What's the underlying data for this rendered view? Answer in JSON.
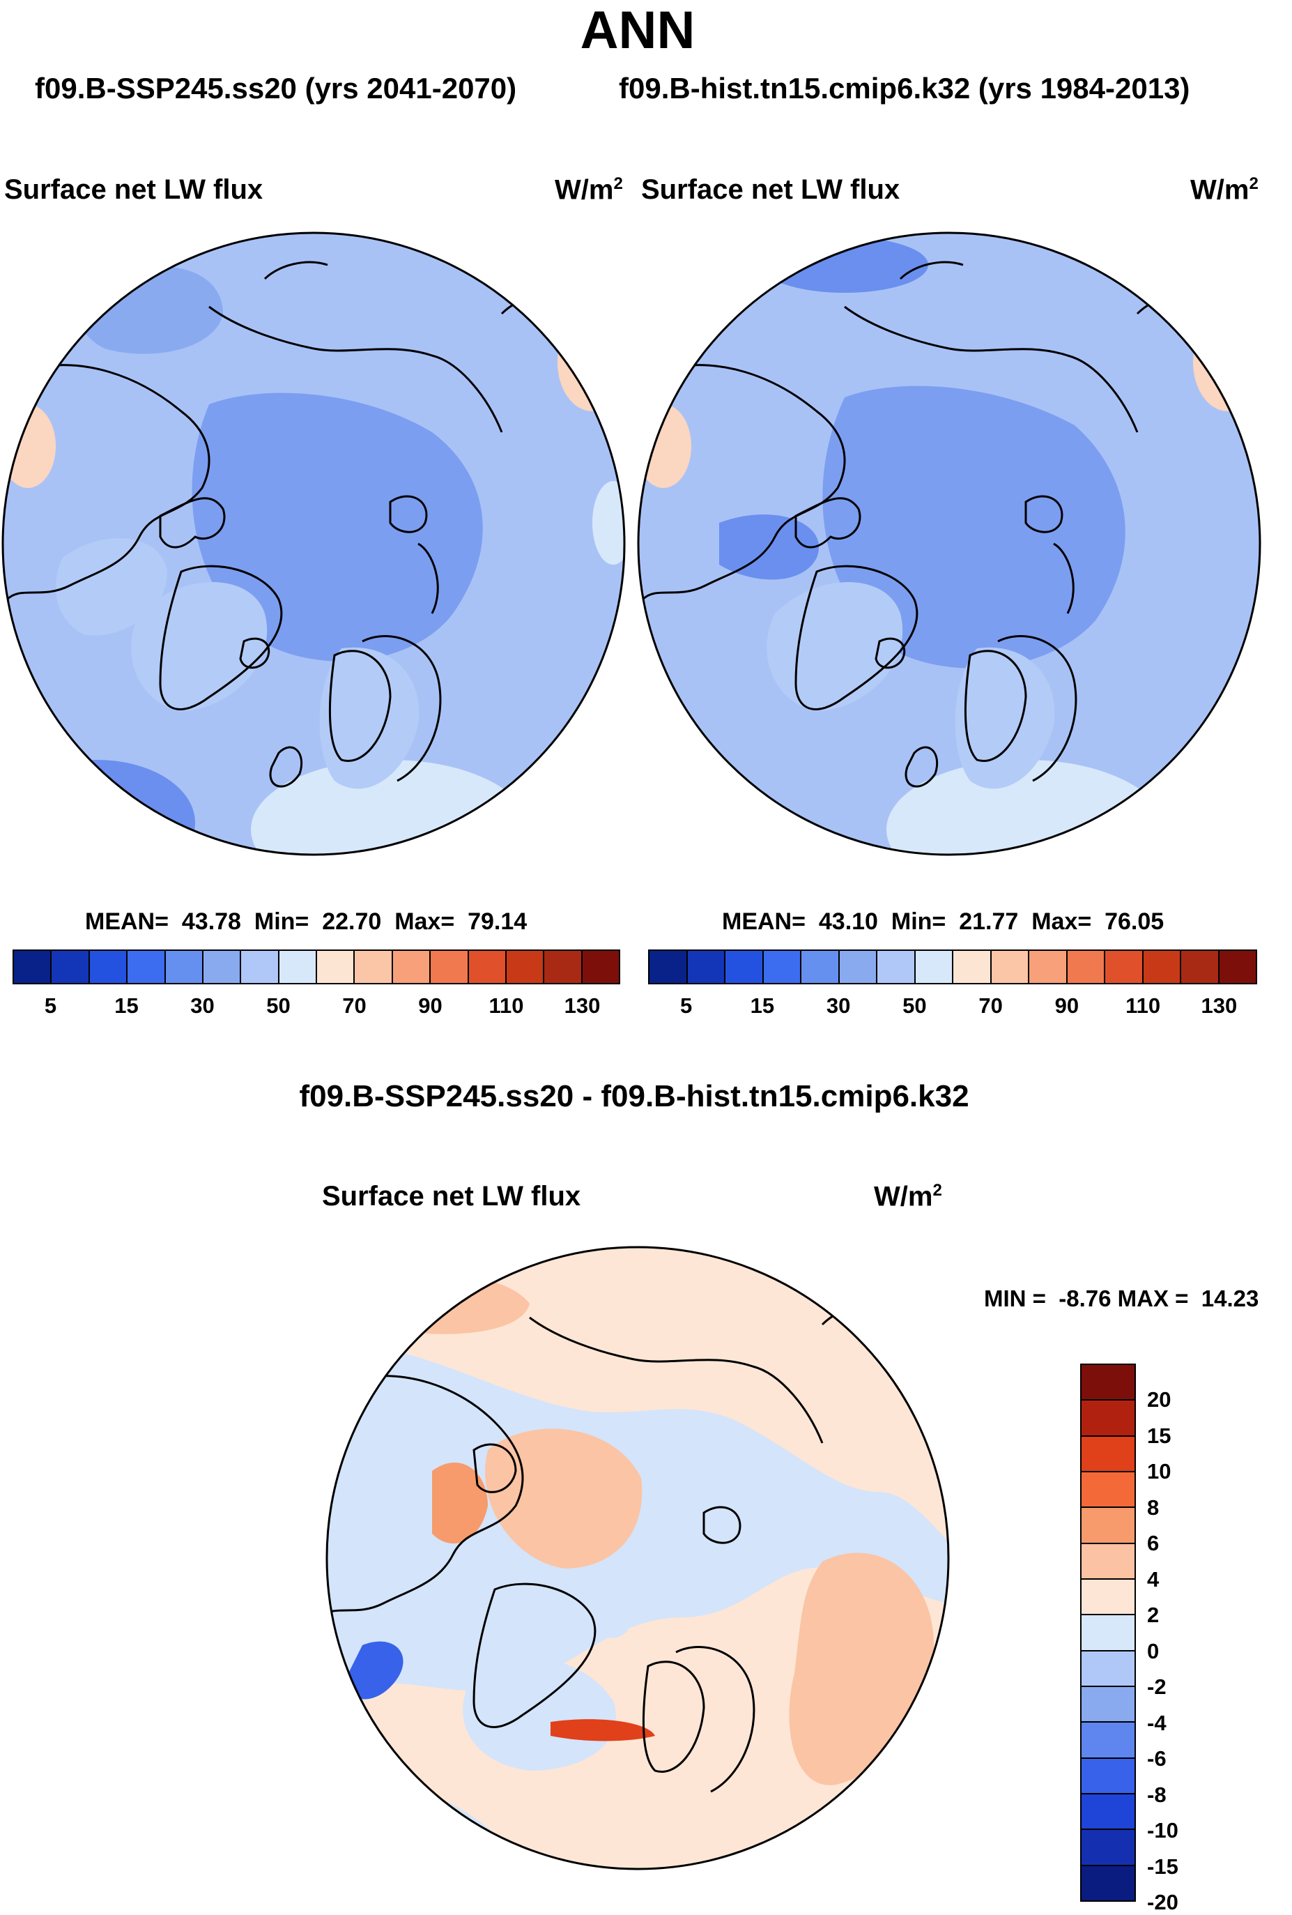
{
  "header": {
    "season": "ANN",
    "subtitle_left": "f09.B-SSP245.ss20 (yrs 2041-2070)",
    "subtitle_right": "f09.B-hist.tn15.cmip6.k32 (yrs 1984-2013)"
  },
  "panels": [
    {
      "variable": "Surface net LW flux",
      "units": "W/m",
      "units_exp": "2",
      "stats_label": "MEAN=",
      "mean": "43.78",
      "min_label": "Min=",
      "min": "22.70",
      "max_label": "Max=",
      "max": "79.14"
    },
    {
      "variable": "Surface net LW flux",
      "units": "W/m",
      "units_exp": "2",
      "stats_label": "MEAN=",
      "mean": "43.10",
      "min_label": "Min=",
      "min": "21.77",
      "max_label": "Max=",
      "max": "76.05"
    }
  ],
  "colorbar_abs": {
    "colors": [
      "#08228a",
      "#1336b8",
      "#2452e0",
      "#3c6cf0",
      "#6690f0",
      "#8aaaf0",
      "#b0c8f8",
      "#d8e8fb",
      "#fde5d4",
      "#fbc6a8",
      "#f7a07a",
      "#f1794f",
      "#e0502a",
      "#c83a17",
      "#a82a14",
      "#7d0f0a"
    ],
    "labels": [
      "5",
      "15",
      "30",
      "50",
      "70",
      "90",
      "110",
      "130"
    ]
  },
  "difference": {
    "title": "f09.B-SSP245.ss20 - f09.B-hist.tn15.cmip6.k32",
    "variable": "Surface net LW flux",
    "units": "W/m",
    "units_exp": "2",
    "min_label": "MIN =",
    "min": "-8.76",
    "max_label": "MAX =",
    "max": "14.23"
  },
  "colorbar_diff": {
    "colors": [
      "#7d0f0a",
      "#b0220f",
      "#e0401a",
      "#f36a38",
      "#f79b6c",
      "#fbc3a4",
      "#fde6d6",
      "#d8e8fb",
      "#b0c8f8",
      "#8aaaf0",
      "#5f86ee",
      "#3862ea",
      "#1f44d8",
      "#1430b0",
      "#0a1c80"
    ],
    "labels": [
      "20",
      "15",
      "10",
      "8",
      "6",
      "4",
      "2",
      "0",
      "-2",
      "-4",
      "-6",
      "-8",
      "-10",
      "-15",
      "-20"
    ]
  },
  "colors": {
    "ocean_abs": "#a9c2f6",
    "arctic_abs": "#7c9ef0",
    "land_abs": "#b3cbf7",
    "diff_base": "#fde6d6",
    "diff_neg": "#d4e4fa",
    "diff_pos": "#fbc4a4"
  }
}
